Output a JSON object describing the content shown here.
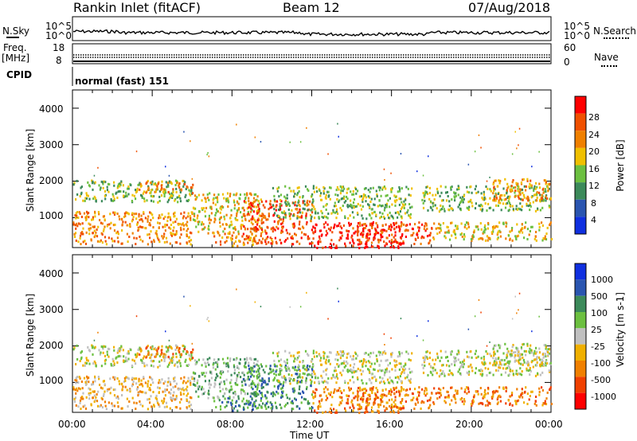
{
  "header": {
    "station": "Rankin Inlet (fitACF)",
    "beam": "Beam 12",
    "date": "07/Aug/2018"
  },
  "top_panels": {
    "nsky_label": "N.Sky",
    "nsearch_label": "N.Search",
    "noise_ticks_left": [
      "10^5",
      "10^0"
    ],
    "noise_ticks_right": [
      "10^5",
      "10^0"
    ],
    "freq_label_line1": "Freq.",
    "freq_label_line2": "[MHz]",
    "freq_ticks": [
      "18",
      "8"
    ],
    "nave_label": "Nave",
    "nave_ticks": [
      "60",
      "0"
    ],
    "cpid_label": "CPID",
    "cpid_value": "normal (fast) 151"
  },
  "chart_data": [
    {
      "type": "heatmap",
      "title": "",
      "ylabel": "Slant Range [km]",
      "ylim": [
        180,
        4500
      ],
      "yticks": [
        "1000",
        "2000",
        "3000",
        "4000"
      ],
      "xlabel": "",
      "colorbar": {
        "label": "Power [dB]",
        "ticks": [
          "4",
          "8",
          "12",
          "16",
          "20",
          "24",
          "28"
        ],
        "colors": [
          "#1030e0",
          "#2a55b0",
          "#3c8a5a",
          "#6cc040",
          "#f0c000",
          "#f08000",
          "#f05000",
          "#ff0000"
        ],
        "range": [
          0,
          30
        ]
      }
    },
    {
      "type": "heatmap",
      "title": "",
      "ylabel": "Slant Range [km]",
      "ylim": [
        180,
        4500
      ],
      "yticks": [
        "1000",
        "2000",
        "3000",
        "4000"
      ],
      "xlabel": "Time UT",
      "xticks": [
        "00:00",
        "04:00",
        "08:00",
        "12:00",
        "16:00",
        "20:00",
        "00:00"
      ],
      "colorbar": {
        "label": "Velocity [m s-1]",
        "ticks": [
          "1000",
          "500",
          "100",
          "25",
          "-25",
          "-100",
          "-500",
          "-1000"
        ],
        "colors": [
          "#1030e0",
          "#2a55b0",
          "#3c8a5a",
          "#6cc040",
          "#c0c0c0",
          "#f0b000",
          "#f08000",
          "#f04000",
          "#ff0000"
        ]
      }
    }
  ]
}
